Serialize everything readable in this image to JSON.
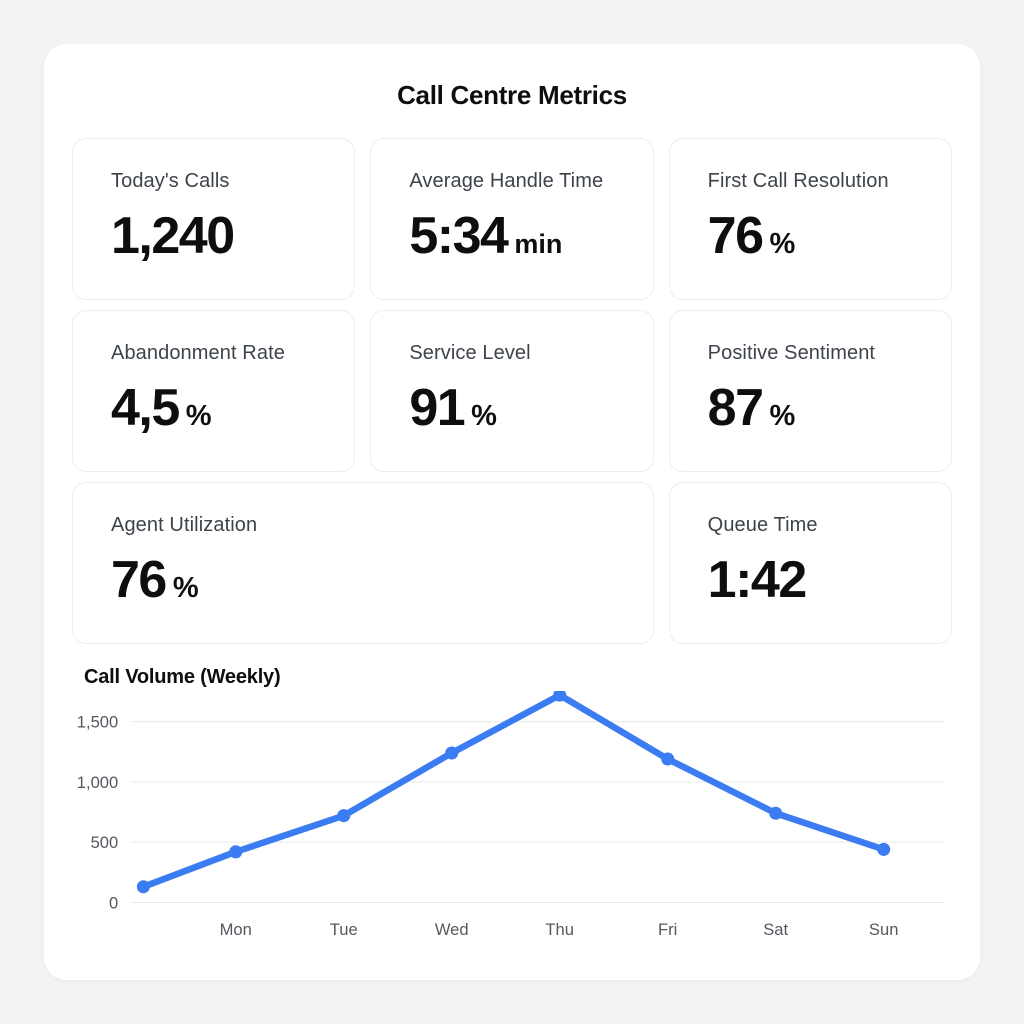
{
  "title": "Call Centre Metrics",
  "stats": [
    {
      "label": "Today's Calls",
      "value": "1,240",
      "suffix": ""
    },
    {
      "label": "Average Handle Time",
      "value": "5:34",
      "suffix": "min"
    },
    {
      "label": "First Call Resolution",
      "value": "76",
      "suffix": "%"
    },
    {
      "label": "Abandonment Rate",
      "value": "4,5",
      "suffix": "%"
    },
    {
      "label": "Service Level",
      "value": "91",
      "suffix": "%"
    },
    {
      "label": "Positive Sentiment",
      "value": "87",
      "suffix": "%"
    },
    {
      "label": "Agent Utilization",
      "value": "76",
      "suffix": "%"
    },
    {
      "label": "Queue Time",
      "value": "1:42",
      "suffix": ""
    }
  ],
  "chart_data": {
    "type": "line",
    "title": "Call Volume (Weekly)",
    "categories": [
      "",
      "Mon",
      "Tue",
      "Wed",
      "Thu",
      "Fri",
      "Sat",
      "Sun"
    ],
    "values": [
      130,
      420,
      720,
      1240,
      1720,
      1190,
      740,
      440
    ],
    "y_ticks": [
      0,
      500,
      1000,
      1500
    ],
    "y_tick_labels": [
      "0",
      "500",
      "1,000",
      "1,500"
    ],
    "ylim": [
      0,
      1800
    ],
    "grid": true,
    "legend": false,
    "line_color": "#3b7cf3",
    "point_color": "#3b7cf3"
  }
}
